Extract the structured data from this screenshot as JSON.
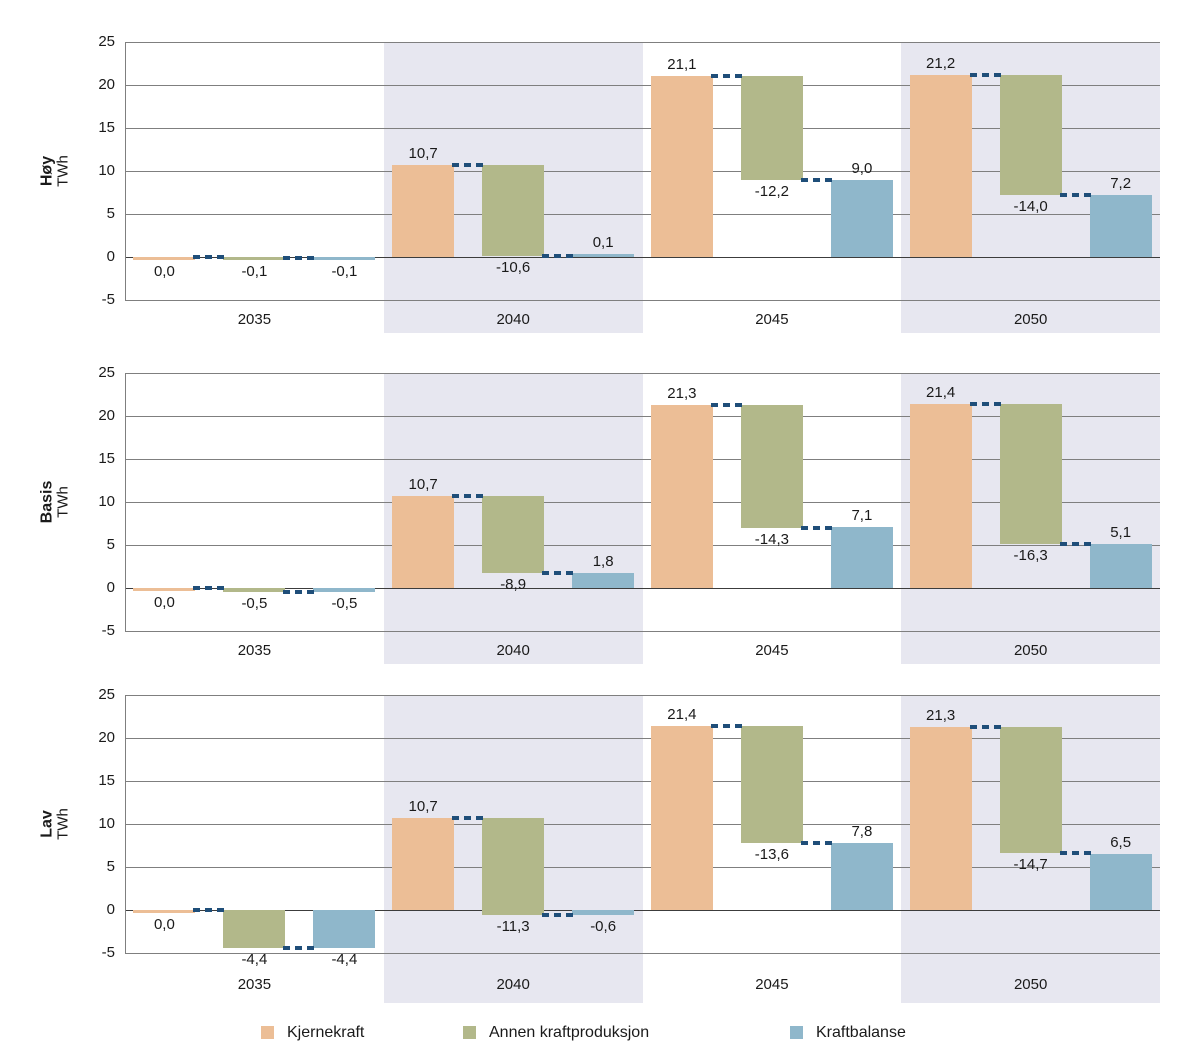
{
  "colors": {
    "kjernekraft": "#ECBE96",
    "annen": "#B2B88A",
    "kraftbalanse": "#8FB7CB",
    "band": "#E7E7F0",
    "connector": "#1F4E79",
    "grid": "#7F7F7F",
    "zero_line": "#3C3C3C",
    "text": "#1A1A1A"
  },
  "y_axis": {
    "unit": "TWh",
    "ticks": [
      "25",
      "20",
      "15",
      "10",
      "5",
      "0",
      "-5"
    ],
    "tick_values": [
      25,
      20,
      15,
      10,
      5,
      0,
      -5
    ]
  },
  "legend": {
    "items": [
      {
        "key": "kjernekraft",
        "label": "Kjernekraft"
      },
      {
        "key": "annen",
        "label": "Annen kraftproduksjon"
      },
      {
        "key": "kraftbalanse",
        "label": "Kraftbalanse"
      }
    ]
  },
  "chart_data": {
    "type": "bar",
    "subtype": "waterfall",
    "unit": "TWh",
    "categories": [
      "2035",
      "2040",
      "2045",
      "2050"
    ],
    "shaded_categories": [
      "2040",
      "2050"
    ],
    "series_names": [
      "Kjernekraft",
      "Annen kraftproduksjon",
      "Kraftbalanse"
    ],
    "ylim": [
      -5,
      25
    ],
    "grid": true,
    "legend_position": "bottom",
    "panels": [
      {
        "name": "Høy",
        "unit": "TWh",
        "groups": [
          {
            "category": "2035",
            "values": [
              0.0,
              -0.1,
              -0.1
            ],
            "labels": [
              "0,0",
              "-0,1",
              "-0,1"
            ]
          },
          {
            "category": "2040",
            "values": [
              10.7,
              -10.6,
              0.1
            ],
            "labels": [
              "10,7",
              "-10,6",
              "0,1"
            ]
          },
          {
            "category": "2045",
            "values": [
              21.1,
              -12.2,
              9.0
            ],
            "labels": [
              "21,1",
              "-12,2",
              "9,0"
            ]
          },
          {
            "category": "2050",
            "values": [
              21.2,
              -14.0,
              7.2
            ],
            "labels": [
              "21,2",
              "-14,0",
              "7,2"
            ]
          }
        ]
      },
      {
        "name": "Basis",
        "unit": "TWh",
        "groups": [
          {
            "category": "2035",
            "values": [
              0.0,
              -0.5,
              -0.5
            ],
            "labels": [
              "0,0",
              "-0,5",
              "-0,5"
            ]
          },
          {
            "category": "2040",
            "values": [
              10.7,
              -8.9,
              1.8
            ],
            "labels": [
              "10,7",
              "-8,9",
              "1,8"
            ]
          },
          {
            "category": "2045",
            "values": [
              21.3,
              -14.3,
              7.1
            ],
            "labels": [
              "21,3",
              "-14,3",
              "7,1"
            ]
          },
          {
            "category": "2050",
            "values": [
              21.4,
              -16.3,
              5.1
            ],
            "labels": [
              "21,4",
              "-16,3",
              "5,1"
            ]
          }
        ]
      },
      {
        "name": "Lav",
        "unit": "TWh",
        "groups": [
          {
            "category": "2035",
            "values": [
              0.0,
              -4.4,
              -4.4
            ],
            "labels": [
              "0,0",
              "-4,4",
              "-4,4"
            ]
          },
          {
            "category": "2040",
            "values": [
              10.7,
              -11.3,
              -0.6
            ],
            "labels": [
              "10,7",
              "-11,3",
              "-0,6"
            ]
          },
          {
            "category": "2045",
            "values": [
              21.4,
              -13.6,
              7.8
            ],
            "labels": [
              "21,4",
              "-13,6",
              "7,8"
            ]
          },
          {
            "category": "2050",
            "values": [
              21.3,
              -14.7,
              6.5
            ],
            "labels": [
              "21,3",
              "-14,7",
              "6,5"
            ]
          }
        ]
      }
    ]
  }
}
